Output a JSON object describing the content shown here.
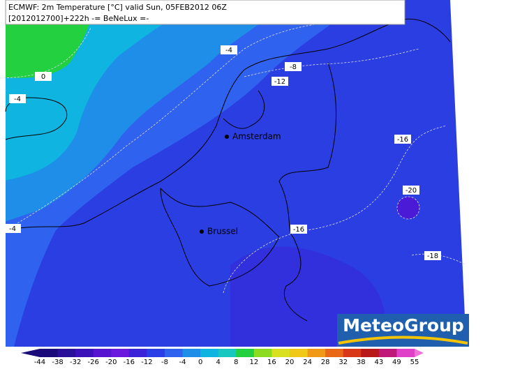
{
  "header": {
    "line1": "ECMWF: 2m Temperature [°C] valid Sun, 05FEB2012 06Z",
    "line2": "[2012012700]+222h  -= BeNeLux =-"
  },
  "contour_labels": [
    "-4",
    "0",
    "-4",
    "-8",
    "-12",
    "-16",
    "-20",
    "-4",
    "-16",
    "-18"
  ],
  "cities": [
    "Amsterdam",
    "Brussel"
  ],
  "logo": "MeteoGroup",
  "colorbar": {
    "ticks": [
      "-44",
      "-38",
      "-32",
      "-26",
      "-20",
      "-16",
      "-12",
      "-8",
      "-4",
      "0",
      "4",
      "8",
      "12",
      "16",
      "20",
      "24",
      "28",
      "32",
      "38",
      "43",
      "49",
      "55"
    ],
    "colors": [
      "#1a0a7a",
      "#2a0f99",
      "#3a10b8",
      "#5514d0",
      "#6a18dd",
      "#3a22d8",
      "#2a3ee8",
      "#2f62ee",
      "#1e8ee8",
      "#10b4e0",
      "#18c8c0",
      "#22d040",
      "#8cdc22",
      "#d8e020",
      "#f0c818",
      "#f09818",
      "#e86818",
      "#d83818",
      "#b81818",
      "#c01878",
      "#e040c8"
    ]
  }
}
